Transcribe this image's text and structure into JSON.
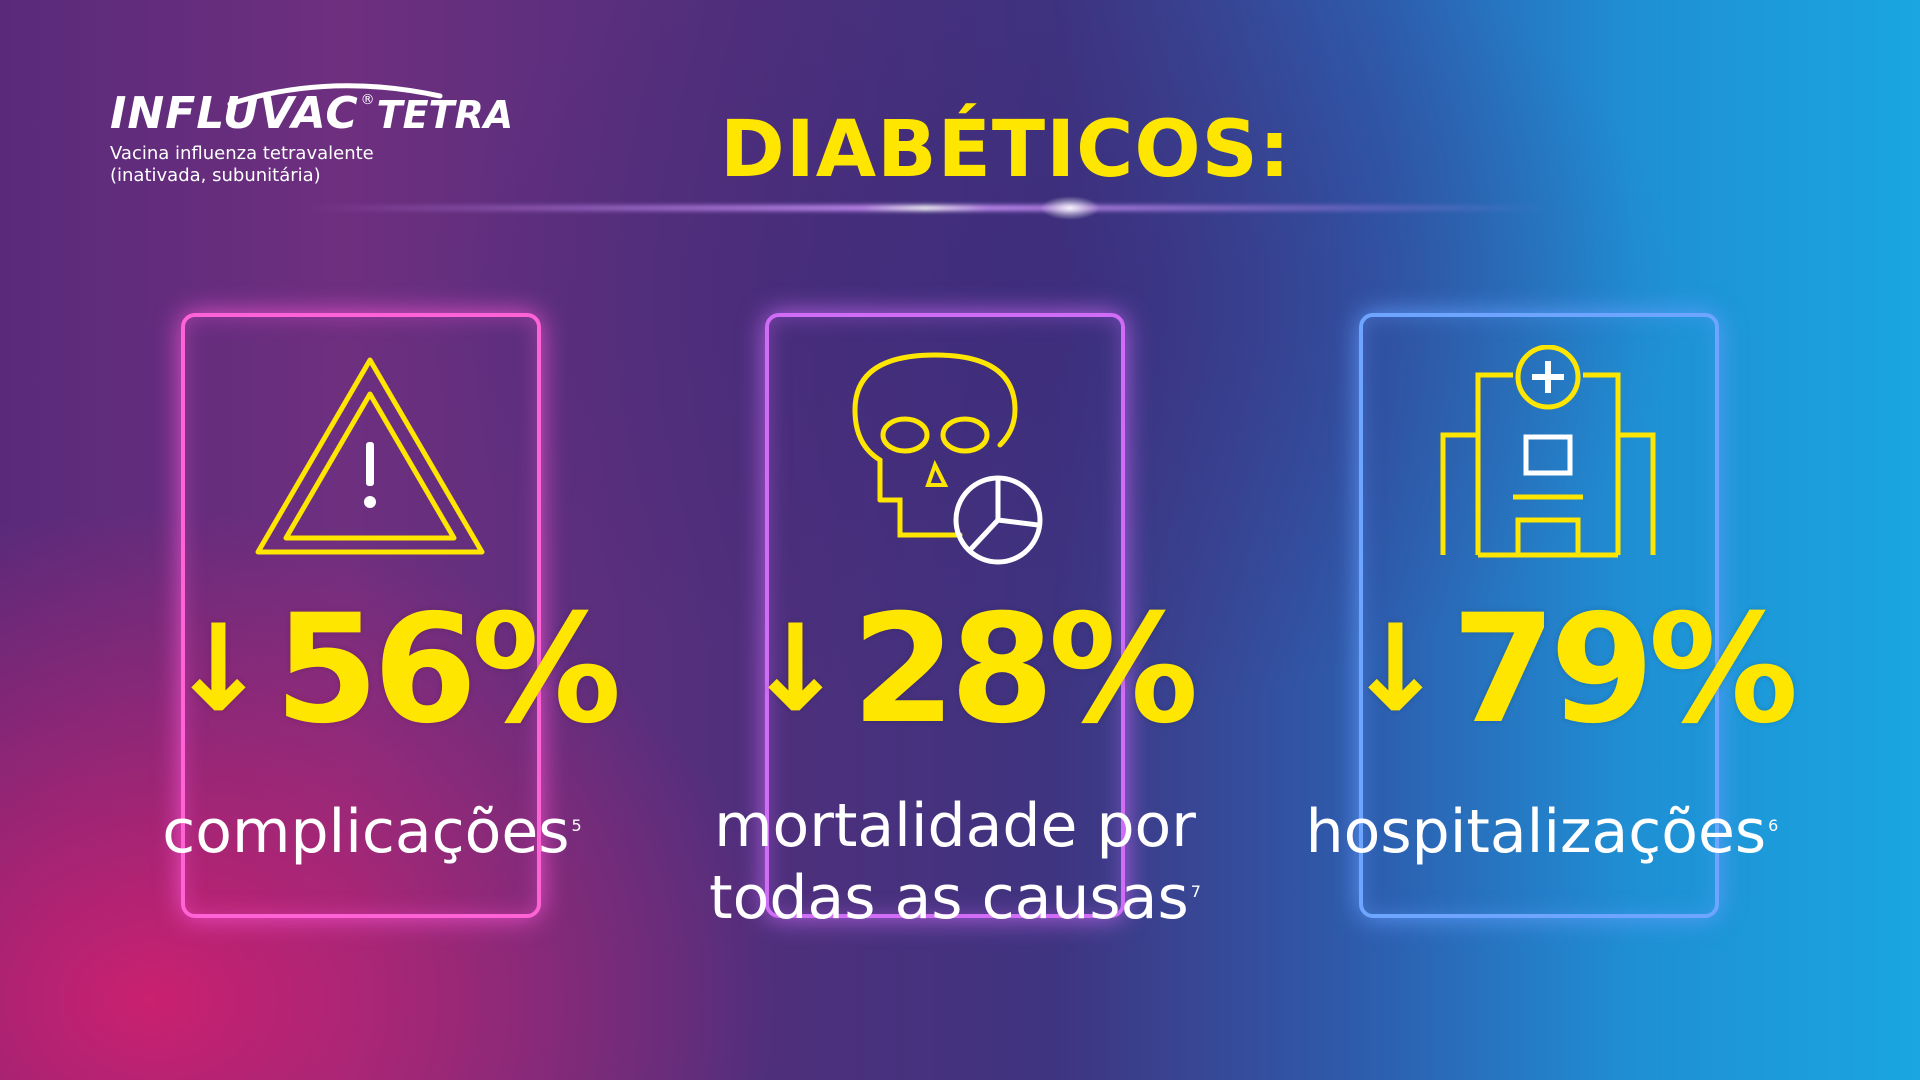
{
  "logo": {
    "brand": "INFLUVAC",
    "registered": "®",
    "tetra": "TETRA",
    "subtitle_line1": "Vacina influenza tetravalente",
    "subtitle_line2": "(inativada, subunitária)"
  },
  "title": "DIABÉTICOS:",
  "cards": [
    {
      "icon": "warning-triangle-icon",
      "arrow": "↓",
      "value": "56%",
      "label_line1": "complicações",
      "footnote": "5"
    },
    {
      "icon": "skull-pie-chart-icon",
      "arrow": "↓",
      "value": "28%",
      "label_line1": "mortalidade por",
      "label_line2": "todas as causas",
      "footnote": "7"
    },
    {
      "icon": "hospital-icon",
      "arrow": "↓",
      "value": "79%",
      "label_line1": "hospitalizações",
      "footnote": "6"
    }
  ],
  "colors": {
    "accent": "#ffe600",
    "text": "#ffffff",
    "card_pink": "#ff63d6",
    "card_purple": "#d06cf5",
    "card_blue": "#6ea6ff"
  }
}
